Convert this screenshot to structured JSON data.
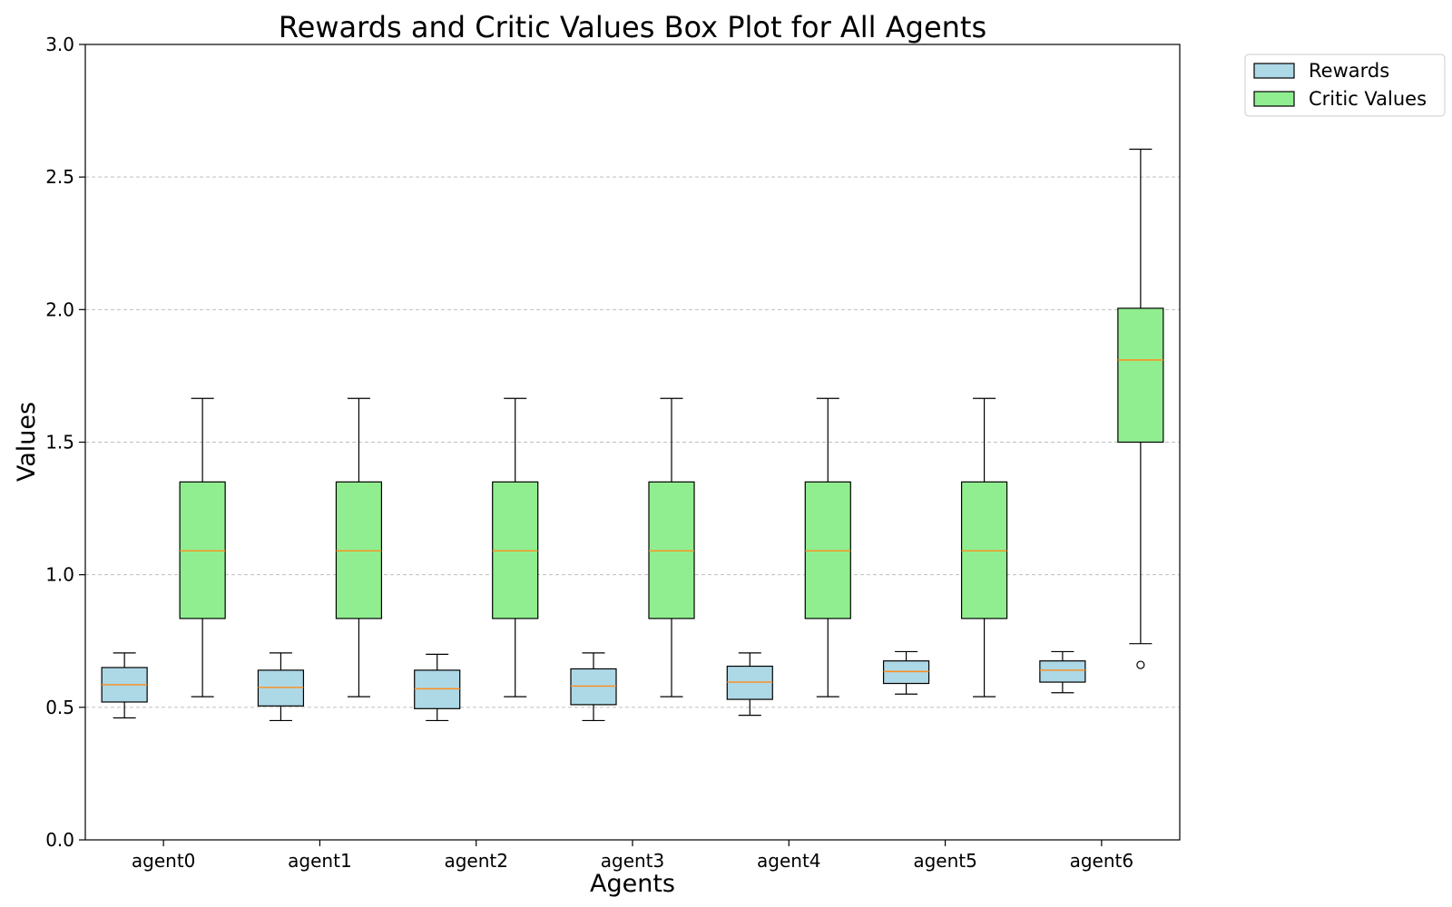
{
  "chart_data": {
    "type": "box",
    "title": "Rewards and Critic Values Box Plot for All Agents",
    "xlabel": "Agents",
    "ylabel": "Values",
    "ylim": [
      0,
      3
    ],
    "yticks": [
      0.0,
      0.5,
      1.0,
      1.5,
      2.0,
      2.5,
      3.0
    ],
    "ytick_labels": [
      "0.0",
      "0.5",
      "1.0",
      "1.5",
      "2.0",
      "2.5",
      "3.0"
    ],
    "grid": "horizontal dashed",
    "legend_position": "outside-top-right",
    "categories": [
      "agent0",
      "agent1",
      "agent2",
      "agent3",
      "agent4",
      "agent5",
      "agent6"
    ],
    "series": [
      {
        "name": "Rewards",
        "color": "#add8e6",
        "boxes": [
          {
            "whislo": 0.46,
            "q1": 0.52,
            "med": 0.585,
            "q3": 0.65,
            "whishi": 0.705,
            "fliers": []
          },
          {
            "whislo": 0.45,
            "q1": 0.505,
            "med": 0.575,
            "q3": 0.64,
            "whishi": 0.705,
            "fliers": []
          },
          {
            "whislo": 0.45,
            "q1": 0.495,
            "med": 0.57,
            "q3": 0.64,
            "whishi": 0.7,
            "fliers": []
          },
          {
            "whislo": 0.45,
            "q1": 0.51,
            "med": 0.58,
            "q3": 0.645,
            "whishi": 0.705,
            "fliers": []
          },
          {
            "whislo": 0.47,
            "q1": 0.53,
            "med": 0.595,
            "q3": 0.655,
            "whishi": 0.705,
            "fliers": []
          },
          {
            "whislo": 0.55,
            "q1": 0.59,
            "med": 0.635,
            "q3": 0.675,
            "whishi": 0.71,
            "fliers": []
          },
          {
            "whislo": 0.555,
            "q1": 0.595,
            "med": 0.64,
            "q3": 0.675,
            "whishi": 0.71,
            "fliers": []
          }
        ]
      },
      {
        "name": "Critic Values",
        "color": "#90ee90",
        "boxes": [
          {
            "whislo": 0.54,
            "q1": 0.835,
            "med": 1.09,
            "q3": 1.35,
            "whishi": 1.665,
            "fliers": []
          },
          {
            "whislo": 0.54,
            "q1": 0.835,
            "med": 1.09,
            "q3": 1.35,
            "whishi": 1.665,
            "fliers": []
          },
          {
            "whislo": 0.54,
            "q1": 0.835,
            "med": 1.09,
            "q3": 1.35,
            "whishi": 1.665,
            "fliers": []
          },
          {
            "whislo": 0.54,
            "q1": 0.835,
            "med": 1.09,
            "q3": 1.35,
            "whishi": 1.665,
            "fliers": []
          },
          {
            "whislo": 0.54,
            "q1": 0.835,
            "med": 1.09,
            "q3": 1.35,
            "whishi": 1.665,
            "fliers": []
          },
          {
            "whislo": 0.54,
            "q1": 0.835,
            "med": 1.09,
            "q3": 1.35,
            "whishi": 1.665,
            "fliers": []
          },
          {
            "whislo": 0.74,
            "q1": 1.5,
            "med": 1.81,
            "q3": 2.005,
            "whishi": 2.605,
            "fliers": [
              0.66
            ]
          }
        ]
      }
    ],
    "median_color": "#ff8c1a"
  }
}
